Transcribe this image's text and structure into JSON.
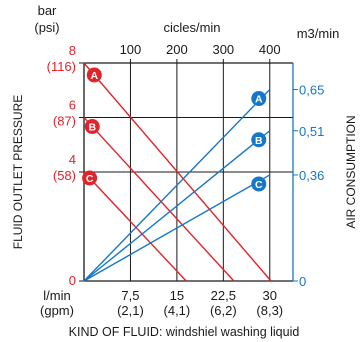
{
  "chart_data": {
    "type": "line",
    "left_axis": {
      "unit": "bar",
      "unit_alt": "(psi)",
      "title": "FLUID OUTLET PRESSURE",
      "ylim": [
        0,
        8
      ],
      "ticks": [
        {
          "value": 0,
          "label": "0",
          "alt": ""
        },
        {
          "value": 4,
          "label": "4",
          "alt": "(58)"
        },
        {
          "value": 6,
          "label": "6",
          "alt": "(87)"
        },
        {
          "value": 8,
          "label": "8",
          "alt": "(116)"
        }
      ]
    },
    "right_axis": {
      "unit": "m3/min",
      "title": "AIR CONSUMPTION",
      "ylim": [
        0,
        0.74
      ],
      "ticks": [
        {
          "value": 0,
          "label": "0"
        },
        {
          "value": 0.36,
          "label": "0,36"
        },
        {
          "value": 0.51,
          "label": "0,51"
        },
        {
          "value": 0.65,
          "label": "0,65"
        }
      ]
    },
    "top_axis": {
      "unit": "cicles/min",
      "xlim": [
        0,
        450
      ],
      "ticks": [
        {
          "value": 100,
          "label": "100"
        },
        {
          "value": 200,
          "label": "200"
        },
        {
          "value": 300,
          "label": "300"
        },
        {
          "value": 400,
          "label": "400"
        }
      ]
    },
    "bottom_axis": {
      "unit": "l/min",
      "unit_alt": "(gpm)",
      "xlim": [
        0,
        33.75
      ],
      "ticks": [
        {
          "value": 7.5,
          "label": "7,5",
          "alt": "(2,1)"
        },
        {
          "value": 15,
          "label": "15",
          "alt": "(4,1)"
        },
        {
          "value": 22.5,
          "label": "22,5",
          "alt": "(6,2)"
        },
        {
          "value": 30,
          "label": "30",
          "alt": "(8,3)"
        }
      ]
    },
    "pressure_series": [
      {
        "name": "A",
        "x": [
          0,
          30.2
        ],
        "y": [
          8,
          0
        ]
      },
      {
        "name": "B",
        "x": [
          0,
          24.2
        ],
        "y": [
          6,
          0
        ]
      },
      {
        "name": "C",
        "x": [
          0,
          16.5
        ],
        "y": [
          4,
          0
        ]
      }
    ],
    "air_series": [
      {
        "name": "A",
        "x": [
          0,
          400
        ],
        "y": [
          0,
          0.65
        ]
      },
      {
        "name": "B",
        "x": [
          0,
          400
        ],
        "y": [
          0,
          0.51
        ]
      },
      {
        "name": "C",
        "x": [
          0,
          400
        ],
        "y": [
          0,
          0.36
        ]
      }
    ],
    "footer": "KIND OF FLUID: windshiel washing liquid",
    "grid": true,
    "colors": {
      "pressure": "#e3232b",
      "air": "#1677c8",
      "axes": "#1a1a1a"
    }
  }
}
